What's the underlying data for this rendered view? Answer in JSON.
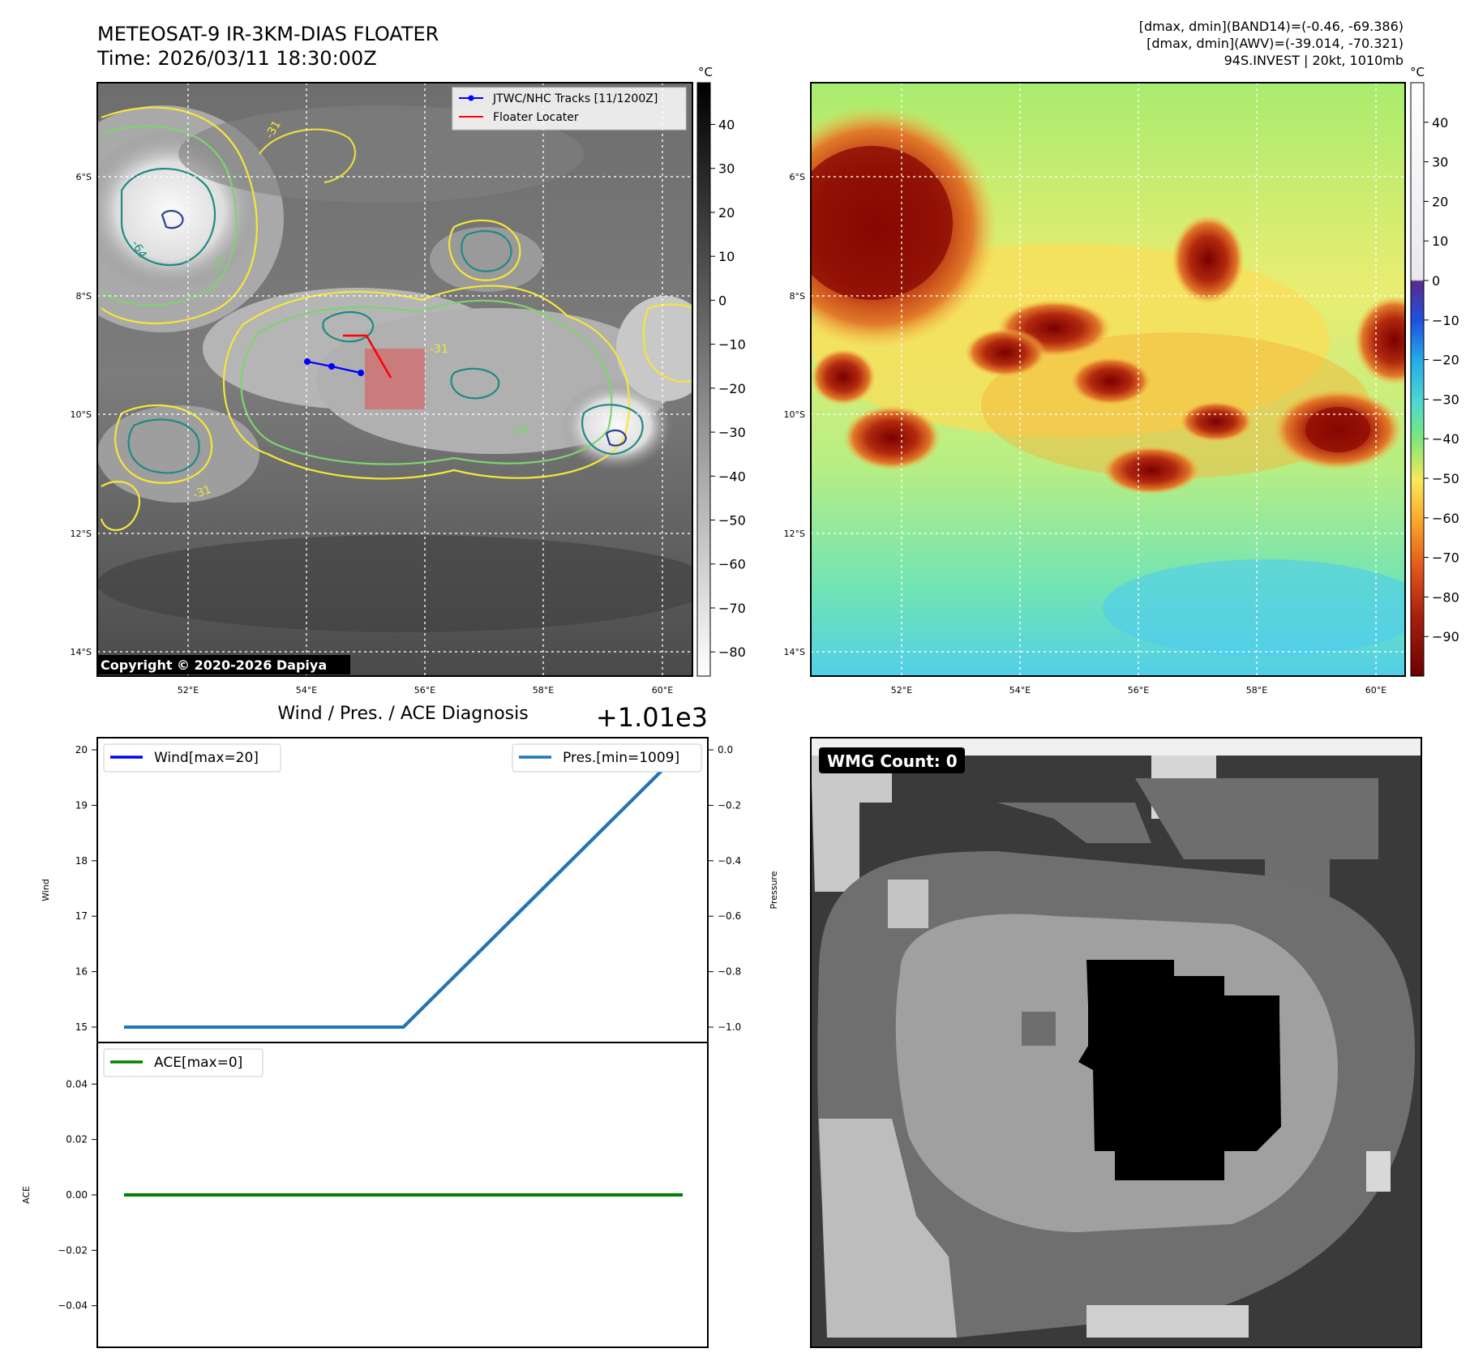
{
  "header": {
    "title_line1": "METEOSAT-9 IR-3KM-DIAS FLOATER",
    "title_line2": "Time: 2026/03/11 18:30:00Z",
    "info_line1": "[dmax, dmin](BAND14)=(-0.46, -69.386)",
    "info_line2": "[dmax, dmin](AWV)=(-39.014, -70.321)",
    "info_line3": "94S.INVEST | 20kt, 1010mb"
  },
  "maps": {
    "lat_ticks": [
      "6°S",
      "8°S",
      "10°S",
      "12°S",
      "14°S"
    ],
    "lon_ticks": [
      "52°E",
      "54°E",
      "56°E",
      "58°E",
      "60°E"
    ],
    "contour_labels": [
      "-31",
      "-54",
      "-64"
    ],
    "ir_colorbar": {
      "unit": "°C",
      "ticks": [
        40,
        30,
        20,
        10,
        0,
        -10,
        -20,
        -30,
        -40,
        -50,
        -60,
        -70,
        -80
      ]
    },
    "awv_colorbar": {
      "unit": "°C",
      "ticks": [
        40,
        30,
        20,
        10,
        0,
        -10,
        -20,
        -30,
        -40,
        -50,
        -60,
        -70,
        -80,
        -90
      ]
    },
    "legend": {
      "track": "JTWC/NHC Tracks [11/1200Z]",
      "locator": "Floater Locater"
    },
    "copyright": "Copyright © 2020-2026 Dapiya",
    "colors": {
      "track": "#0000ff",
      "locator": "#ff0000",
      "contour_warm": "#f5e63a",
      "contour_mid": "#7ed36f",
      "contour_cold": "#1f8a83",
      "contour_core": "#2b3f8f"
    }
  },
  "chart_data": [
    {
      "type": "line",
      "title": "Wind / Pres. / ACE Diagnosis",
      "offset_label": "+1.01e3",
      "ylabel_left": "Wind",
      "ylabel_right": "Pressure",
      "ylim_left": [
        15,
        20
      ],
      "ylim_right": [
        -1.0,
        0.0
      ],
      "yticks_left": [
        20,
        19,
        18,
        17,
        16,
        15
      ],
      "yticks_right": [
        "0.0",
        "−0.2",
        "−0.4",
        "−0.6",
        "−0.8",
        "−1.0"
      ],
      "series": [
        {
          "name": "Wind[max=20]",
          "color": "#0000ff",
          "axis": "left",
          "values": [
            15,
            15,
            20
          ]
        },
        {
          "name": "Pres.[min=1009]",
          "color": "#1f77b4",
          "axis": "right",
          "values": [
            -1.0,
            -1.0,
            0.0
          ]
        }
      ],
      "x": [
        0,
        1,
        2
      ]
    },
    {
      "type": "line",
      "ylabel": "ACE",
      "ylim": [
        -0.055,
        0.055
      ],
      "yticks": [
        "0.04",
        "0.02",
        "0.00",
        "−0.02",
        "−0.04"
      ],
      "series": [
        {
          "name": "ACE[max=0]",
          "color": "#008000",
          "values": [
            0,
            0
          ]
        }
      ]
    }
  ],
  "wmg": {
    "label": "WMG Count: 0"
  }
}
